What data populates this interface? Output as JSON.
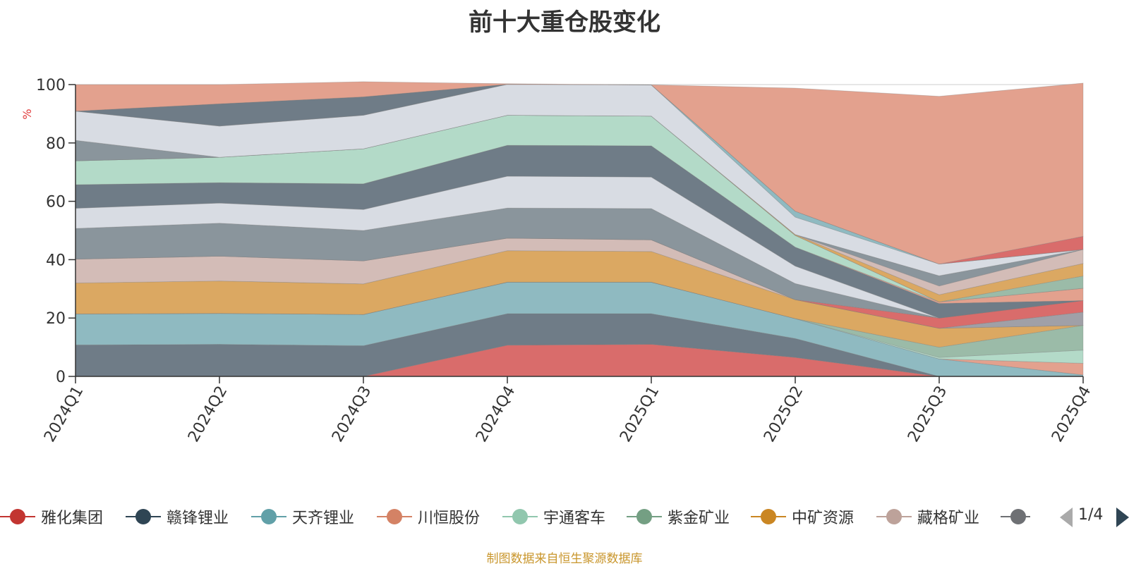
{
  "title": "前十大重仓股变化",
  "source_note": "制图数据来自恒生聚源数据库",
  "pager": {
    "text": "1/4"
  },
  "chart_data": {
    "type": "area",
    "stacked": true,
    "title": "前十大重仓股变化",
    "xlabel": "",
    "ylabel": "%",
    "ylim": [
      0,
      100
    ],
    "yticks": [
      0,
      20,
      40,
      60,
      80,
      100
    ],
    "grid": true,
    "legend_position": "bottom",
    "categories": [
      "2024Q1",
      "2024Q2",
      "2024Q3",
      "2024Q4",
      "2025Q1",
      "2025Q2",
      "2025Q3",
      "2025Q4"
    ],
    "series": [
      {
        "color": "#d96c6b",
        "values": [
          0,
          0,
          0,
          10.7,
          11,
          6.5,
          0,
          0
        ]
      },
      {
        "color": "#6f7c87",
        "values": [
          10.8,
          11,
          10.5,
          10.8,
          10.5,
          6.5,
          0,
          0
        ]
      },
      {
        "color": "#8fbac1",
        "values": [
          10.6,
          10.6,
          10.7,
          10.8,
          10.8,
          6.8,
          6,
          0.5
        ]
      },
      {
        "color": "#e3a18e",
        "values": [
          0,
          0,
          0,
          0,
          0,
          0,
          0,
          4
        ]
      },
      {
        "color": "#b3dac8",
        "values": [
          0,
          0,
          0,
          0,
          0,
          0,
          0.5,
          4.5
        ]
      },
      {
        "color": "#9bbba8",
        "values": [
          0,
          0,
          0,
          0,
          0,
          0,
          3.5,
          8.5
        ]
      },
      {
        "color": "#dba862",
        "values": [
          10.6,
          11.1,
          10.5,
          10.8,
          10.5,
          6.5,
          6.5,
          0
        ]
      },
      {
        "color": "#d3bcb7",
        "values": [
          8.2,
          8.5,
          7.9,
          4.3,
          4,
          0,
          0,
          0
        ]
      },
      {
        "color": "#a0a0a7",
        "values": [
          0,
          0,
          0,
          0,
          0,
          0,
          0,
          4.5
        ]
      },
      {
        "color": "#d96c6b",
        "values": [
          0,
          0,
          0,
          0,
          0,
          0,
          3.5,
          4
        ]
      },
      {
        "color": "#8a959c",
        "values": [
          10.5,
          11.3,
          10.4,
          10.3,
          10.7,
          5.5,
          0,
          0
        ]
      },
      {
        "color": "#d8dce3",
        "values": [
          6.9,
          6.9,
          7.2,
          10.9,
          10.8,
          6,
          0,
          0
        ]
      },
      {
        "color": "#6f7c87",
        "values": [
          8.1,
          7,
          8.8,
          10.6,
          10.7,
          6.5,
          5,
          0
        ]
      },
      {
        "color": "#e3a18e",
        "values": [
          0,
          0,
          0,
          0,
          0,
          0,
          0.5,
          4.2
        ]
      },
      {
        "color": "#b3dac8",
        "values": [
          8.2,
          8.7,
          12,
          10.3,
          10.2,
          4,
          0,
          0
        ]
      },
      {
        "color": "#9bbba8",
        "values": [
          0,
          0,
          0,
          0,
          0,
          0,
          0,
          4.2
        ]
      },
      {
        "color": "#dba862",
        "values": [
          0,
          0,
          0,
          0,
          0,
          0.3,
          2.5,
          4.3
        ]
      },
      {
        "color": "#d3bcb7",
        "values": [
          0,
          0,
          0,
          0,
          0,
          0,
          3,
          4.8
        ]
      },
      {
        "color": "#8a959c",
        "values": [
          7,
          0,
          0,
          0,
          0,
          0,
          3.5,
          0
        ]
      },
      {
        "color": "#d8dce3",
        "values": [
          10,
          10.7,
          11.5,
          10.6,
          10.7,
          6,
          4,
          0
        ]
      },
      {
        "color": "#8fbac1",
        "values": [
          0,
          0,
          0,
          0,
          0,
          2,
          0,
          0
        ]
      },
      {
        "color": "#6f7c87",
        "values": [
          0,
          7.6,
          6.3,
          0,
          0,
          0,
          0,
          0
        ]
      },
      {
        "color": "#d96c6b",
        "values": [
          0,
          0,
          0,
          0,
          0,
          0,
          0,
          4.5
        ]
      },
      {
        "color": "#e3a18e",
        "values": [
          9.1,
          6.6,
          5.2,
          0.2,
          0,
          42.2,
          57.5,
          52.5
        ]
      }
    ],
    "legend": [
      {
        "name": "雅化集团",
        "color": "#c23531"
      },
      {
        "name": "赣锋锂业",
        "color": "#2f4554"
      },
      {
        "name": "天齐锂业",
        "color": "#61a0a8"
      },
      {
        "name": "川恒股份",
        "color": "#d48265"
      },
      {
        "name": "宇通客车",
        "color": "#91c7ae"
      },
      {
        "name": "紫金矿业",
        "color": "#749f83"
      },
      {
        "name": "中矿资源",
        "color": "#ca8622"
      },
      {
        "name": "藏格矿业",
        "color": "#bda29a"
      },
      {
        "name": "",
        "color": "#6e7074"
      }
    ]
  }
}
